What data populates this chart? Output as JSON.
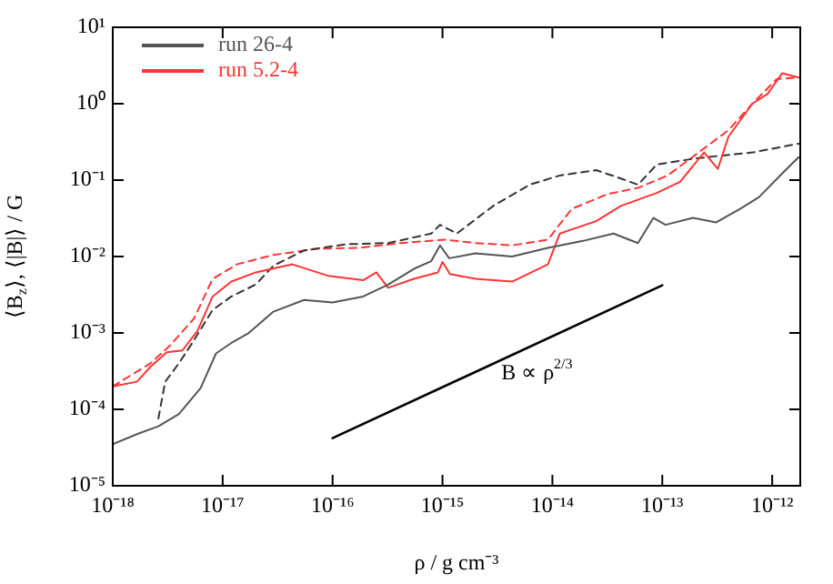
{
  "chart_data": {
    "type": "line",
    "xlabel": "ρ / g cm⁻³",
    "ylabel": "⟨B$_{z}$⟩, ⟨|B|⟩ / G",
    "log": "xy",
    "grid": false,
    "legend": "top left",
    "marker": "none",
    "xlim": [
      1e-18,
      1.8e-12
    ],
    "ylim": [
      1e-05,
      10
    ],
    "xticks": [
      {
        "value": 1e-18,
        "label": "10⁻¹⁸"
      },
      {
        "value": 1e-17,
        "label": "10⁻¹⁷"
      },
      {
        "value": 1e-16,
        "label": "10⁻¹⁶"
      },
      {
        "value": 1e-15,
        "label": "10⁻¹⁵"
      },
      {
        "value": 1e-14,
        "label": "10⁻¹⁴"
      },
      {
        "value": 1e-13,
        "label": "10⁻¹³"
      },
      {
        "value": 1e-12,
        "label": "10⁻¹²"
      }
    ],
    "yticks": [
      {
        "value": 1e-05,
        "label": "10⁻⁵"
      },
      {
        "value": 0.0001,
        "label": "10⁻⁴"
      },
      {
        "value": 0.001,
        "label": "10⁻³"
      },
      {
        "value": 0.01,
        "label": "10⁻²"
      },
      {
        "value": 0.1,
        "label": "10⁻¹"
      },
      {
        "value": 1,
        "label": "10⁰"
      },
      {
        "value": 10,
        "label": "10¹"
      }
    ],
    "annotations": [
      "B ∝ ρ$^{2/3}$"
    ],
    "series": [
      {
        "name": "run 26-4",
        "color": "#555555",
        "line_style": "solid",
        "x": [
          1e-18,
          1.7e-18,
          2.6e-18,
          4e-18,
          6.3e-18,
          8.7e-18,
          1.2e-17,
          1.7e-17,
          2.9e-17,
          5.5e-17,
          1e-16,
          1.9e-16,
          3.2e-16,
          5.5e-16,
          7.9e-16,
          9.5e-16,
          1.15e-15,
          2e-15,
          4.3e-15,
          9.1e-15,
          1.9e-14,
          3.6e-14,
          6e-14,
          8.3e-14,
          1.07e-13,
          1.9e-13,
          3.1e-13,
          5.1e-13,
          7.6e-13,
          1.26e-12,
          1.74e-12
        ],
        "values": [
          3.5e-05,
          4.8e-05,
          6e-05,
          8.7e-05,
          0.00019,
          0.00054,
          0.00074,
          0.00098,
          0.0019,
          0.0027,
          0.0025,
          0.003,
          0.0043,
          0.0069,
          0.0087,
          0.014,
          0.0095,
          0.011,
          0.01,
          0.013,
          0.016,
          0.02,
          0.015,
          0.032,
          0.026,
          0.032,
          0.028,
          0.042,
          0.06,
          0.126,
          0.2
        ]
      },
      {
        "name": "run 5.2-4",
        "color": "#ff3333",
        "line_style": "solid",
        "x": [
          1e-18,
          1.66e-18,
          2.2e-18,
          3.1e-18,
          4.3e-18,
          5.9e-18,
          8.1e-18,
          1.2e-17,
          2e-17,
          4.3e-17,
          9.1e-17,
          1.9e-16,
          2.5e-16,
          3.2e-16,
          5.5e-16,
          9.1e-16,
          1e-15,
          1.17e-15,
          2e-15,
          4.3e-15,
          9.1e-15,
          1.17e-14,
          2.5e-14,
          4.2e-14,
          8.9e-14,
          1.45e-13,
          2.4e-13,
          3.2e-13,
          4e-13,
          6.6e-13,
          9.1e-13,
          1.23e-12,
          1.74e-12
        ],
        "values": [
          0.0002,
          0.00023,
          0.00036,
          0.00056,
          0.00059,
          0.00107,
          0.003,
          0.0047,
          0.0062,
          0.0079,
          0.0056,
          0.0049,
          0.0062,
          0.0039,
          0.0051,
          0.0062,
          0.0085,
          0.0059,
          0.0051,
          0.0047,
          0.0079,
          0.02,
          0.029,
          0.046,
          0.068,
          0.095,
          0.23,
          0.14,
          0.37,
          1,
          1.35,
          2.5,
          2.2
        ]
      },
      {
        "color": "#333333",
        "line_style": "dashed",
        "x": [
          2.6e-18,
          3e-18,
          4e-18,
          5.5e-18,
          8.1e-18,
          1.2e-17,
          2e-17,
          2.9e-17,
          5.5e-17,
          1.35e-16,
          3.2e-16,
          7.9e-16,
          9.5e-16,
          1.35e-15,
          2.9e-15,
          6.2e-15,
          1.17e-14,
          2.5e-14,
          4.2e-14,
          6e-14,
          8.9e-14,
          1.9e-13,
          3.5e-13,
          6.6e-13,
          1.74e-12
        ],
        "values": [
          7.6e-05,
          0.00023,
          0.0004,
          0.00081,
          0.002,
          0.003,
          0.0043,
          0.0076,
          0.012,
          0.0145,
          0.015,
          0.02,
          0.026,
          0.02,
          0.046,
          0.087,
          0.115,
          0.135,
          0.105,
          0.087,
          0.16,
          0.19,
          0.21,
          0.23,
          0.3
        ]
      },
      {
        "color": "#ff3333",
        "line_style": "dashed",
        "x": [
          1e-18,
          2.2e-18,
          3.3e-18,
          5.5e-18,
          8.1e-18,
          1.35e-17,
          2.9e-17,
          7.1e-17,
          1.74e-16,
          4.2e-16,
          1.05e-15,
          2e-15,
          4.3e-15,
          9.1e-15,
          1.5e-14,
          3.2e-14,
          6e-14,
          1.12e-13,
          2.4e-13,
          4e-13,
          6.6e-13,
          1.1e-12,
          1.74e-12
        ],
        "values": [
          0.0002,
          0.0004,
          0.00068,
          0.00155,
          0.0051,
          0.0079,
          0.0105,
          0.0126,
          0.013,
          0.015,
          0.0166,
          0.015,
          0.014,
          0.0166,
          0.042,
          0.066,
          0.079,
          0.115,
          0.26,
          0.45,
          1,
          2.1,
          2.2
        ]
      },
      {
        "type": "line",
        "color": "#000000",
        "line_style": "solid",
        "x": [
          1e-16,
          1e-13
        ],
        "values": [
          4.2e-05,
          0.0042
        ]
      }
    ]
  }
}
